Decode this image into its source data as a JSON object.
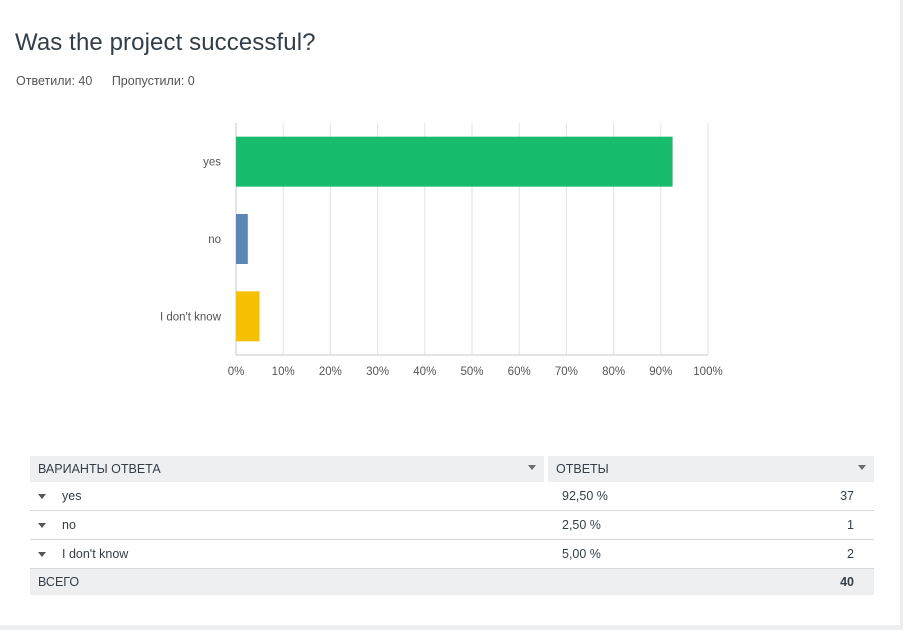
{
  "question": {
    "title": "Was the project successful?"
  },
  "stats": {
    "answered": "Ответили: 40",
    "skipped": "Пропустили: 0"
  },
  "colors": {
    "yes": "#19bc6d",
    "no": "#5a86b8",
    "idk": "#f5c000",
    "grid": "#e2e4e6"
  },
  "chart_data": {
    "type": "bar",
    "orientation": "horizontal",
    "categories": [
      "yes",
      "no",
      "I don't know"
    ],
    "values": [
      92.5,
      2.5,
      5.0
    ],
    "xlim": [
      0,
      100
    ],
    "xticks": [
      "0%",
      "10%",
      "20%",
      "30%",
      "40%",
      "50%",
      "60%",
      "70%",
      "80%",
      "90%",
      "100%"
    ],
    "title": "Was the project successful?",
    "grid": true
  },
  "table": {
    "headers": [
      "ВАРИАНТЫ ОТВЕТА",
      "ОТВЕТЫ"
    ],
    "rows": [
      {
        "label": "yes",
        "percent": "92,50 %",
        "count": "37"
      },
      {
        "label": "no",
        "percent": "2,50 %",
        "count": "1"
      },
      {
        "label": "I don't know",
        "percent": "5,00 %",
        "count": "2"
      }
    ],
    "total": {
      "label": "ВСЕГО",
      "count": "40"
    }
  }
}
